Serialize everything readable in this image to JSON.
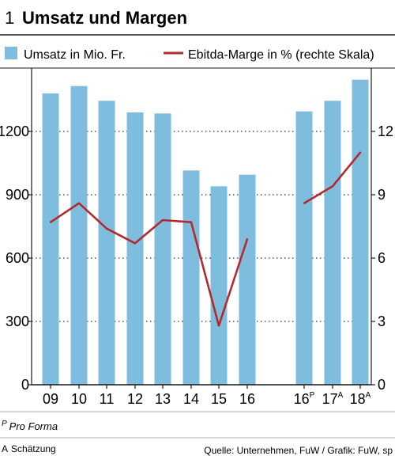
{
  "figure_number": "1",
  "footnotes": {
    "pro_forma_mark": "P",
    "pro_forma_text": "Pro Forma",
    "estimate_mark": "A",
    "estimate_text": "Schätzung",
    "source": "Quelle: Unternehmen, FuW / Grafik: FuW, sp"
  },
  "colors": {
    "bar": "#7fbddf",
    "line": "#b22a2e",
    "grid": "#333333",
    "text": "#1a1a1a"
  },
  "chart_data": {
    "type": "bar",
    "title": "Umsatz und Margen",
    "categories": [
      {
        "label": "09",
        "sup": ""
      },
      {
        "label": "10",
        "sup": ""
      },
      {
        "label": "11",
        "sup": ""
      },
      {
        "label": "12",
        "sup": ""
      },
      {
        "label": "13",
        "sup": ""
      },
      {
        "label": "14",
        "sup": ""
      },
      {
        "label": "15",
        "sup": ""
      },
      {
        "label": "16",
        "sup": ""
      },
      {
        "label": "16",
        "sup": "P"
      },
      {
        "label": "17",
        "sup": "A"
      },
      {
        "label": "18",
        "sup": "A"
      }
    ],
    "series": [
      {
        "name": "Umsatz in Mio. Fr.",
        "type": "bar",
        "axis": "left",
        "values": [
          1380,
          1415,
          1345,
          1290,
          1285,
          1015,
          940,
          995,
          1295,
          1345,
          1445
        ]
      },
      {
        "name": "Ebitda-Marge in % (rechte Skala)",
        "type": "line",
        "axis": "right",
        "segments": [
          [
            0,
            7
          ],
          [
            8,
            10
          ]
        ],
        "values": [
          7.7,
          8.6,
          7.4,
          6.7,
          7.8,
          7.7,
          2.8,
          6.9,
          8.6,
          9.4,
          11.0
        ]
      }
    ],
    "y_left": {
      "min": 0,
      "max": 1500,
      "ticks": [
        0,
        300,
        600,
        900,
        1200
      ]
    },
    "y_right": {
      "min": 0,
      "max": 15,
      "ticks": [
        0,
        3,
        6,
        9,
        12
      ]
    },
    "grid": true,
    "legend": "top"
  }
}
